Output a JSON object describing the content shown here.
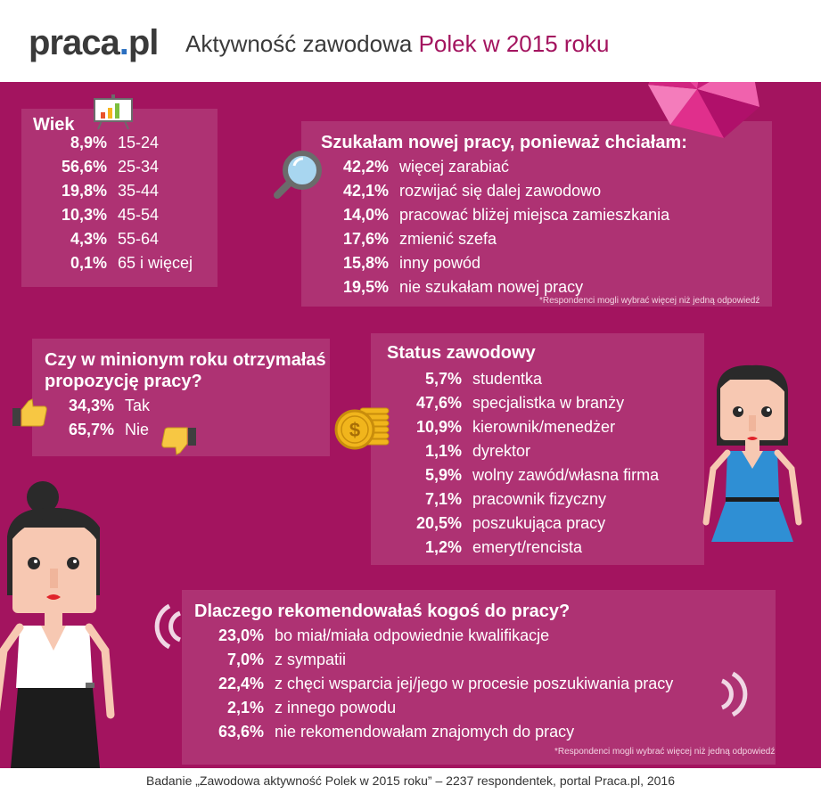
{
  "header": {
    "logo_main": "praca",
    "logo_dot": ".",
    "logo_ext": "pl",
    "title_plain": "Aktywność zawodowa ",
    "title_accent": "Polek w 2015 roku"
  },
  "age": {
    "title": "Wiek",
    "rows": [
      {
        "pct": "8,9%",
        "label": "15-24"
      },
      {
        "pct": "56,6%",
        "label": "25-34"
      },
      {
        "pct": "19,8%",
        "label": "35-44"
      },
      {
        "pct": "10,3%",
        "label": "45-54"
      },
      {
        "pct": "4,3%",
        "label": "55-64"
      },
      {
        "pct": "0,1%",
        "label": "65 i więcej"
      }
    ]
  },
  "search": {
    "title": "Szukałam nowej pracy, ponieważ chciałam:",
    "rows": [
      {
        "pct": "42,2%",
        "label": "więcej zarabiać"
      },
      {
        "pct": "42,1%",
        "label": "rozwijać się dalej zawodowo"
      },
      {
        "pct": "14,0%",
        "label": "pracować bliżej miejsca zamieszkania"
      },
      {
        "pct": "17,6%",
        "label": "zmienić szefa"
      },
      {
        "pct": "15,8%",
        "label": "inny powód"
      },
      {
        "pct": "19,5%",
        "label": "nie szukałam nowej pracy"
      }
    ],
    "note": "*Respondenci mogli wybrać więcej niż jedną odpowiedź"
  },
  "offer": {
    "title_line1": "Czy w minionym roku otrzymałaś",
    "title_line2": "propozycję pracy?",
    "rows": [
      {
        "pct": "34,3%",
        "label": "Tak"
      },
      {
        "pct": "65,7%",
        "label": "Nie"
      }
    ]
  },
  "status": {
    "title": "Status zawodowy",
    "rows": [
      {
        "pct": "5,7%",
        "label": "studentka"
      },
      {
        "pct": "47,6%",
        "label": "specjalistka w branży"
      },
      {
        "pct": "10,9%",
        "label": "kierownik/menedżer"
      },
      {
        "pct": "1,1%",
        "label": "dyrektor"
      },
      {
        "pct": "5,9%",
        "label": "wolny zawód/własna firma"
      },
      {
        "pct": "7,1%",
        "label": "pracownik fizyczny"
      },
      {
        "pct": "20,5%",
        "label": "poszukująca pracy"
      },
      {
        "pct": "1,2%",
        "label": "emeryt/rencista"
      }
    ]
  },
  "recommend": {
    "title": "Dlaczego rekomendowałaś kogoś do pracy?",
    "rows": [
      {
        "pct": "23,0%",
        "label": "bo miał/miała odpowiednie kwalifikacje"
      },
      {
        "pct": "7,0%",
        "label": "z sympatii"
      },
      {
        "pct": "22,4%",
        "label": "z chęci wsparcia jej/jego w procesie poszukiwania pracy"
      },
      {
        "pct": "2,1%",
        "label": "z innego powodu"
      },
      {
        "pct": "63,6%",
        "label": "nie rekomendowałam znajomych do pracy"
      }
    ],
    "note": "*Respondenci mogli wybrać więcej niż jedną odpowiedź"
  },
  "footer": {
    "text": "Badanie „Zawodowa aktywność Polek w 2015 roku” – 2237 respondentek, portal Praca.pl, 2016"
  },
  "icons": [
    "chart-board-icon",
    "magnifier-icon",
    "thumbs-up-icon",
    "thumbs-down-icon",
    "coins-icon",
    "origami-icon",
    "sound-waves-icon"
  ],
  "colors": {
    "background": "#a3145f",
    "accent": "#a3145f",
    "text": "#ffffff",
    "logo_dot": "#2a6fc0"
  }
}
